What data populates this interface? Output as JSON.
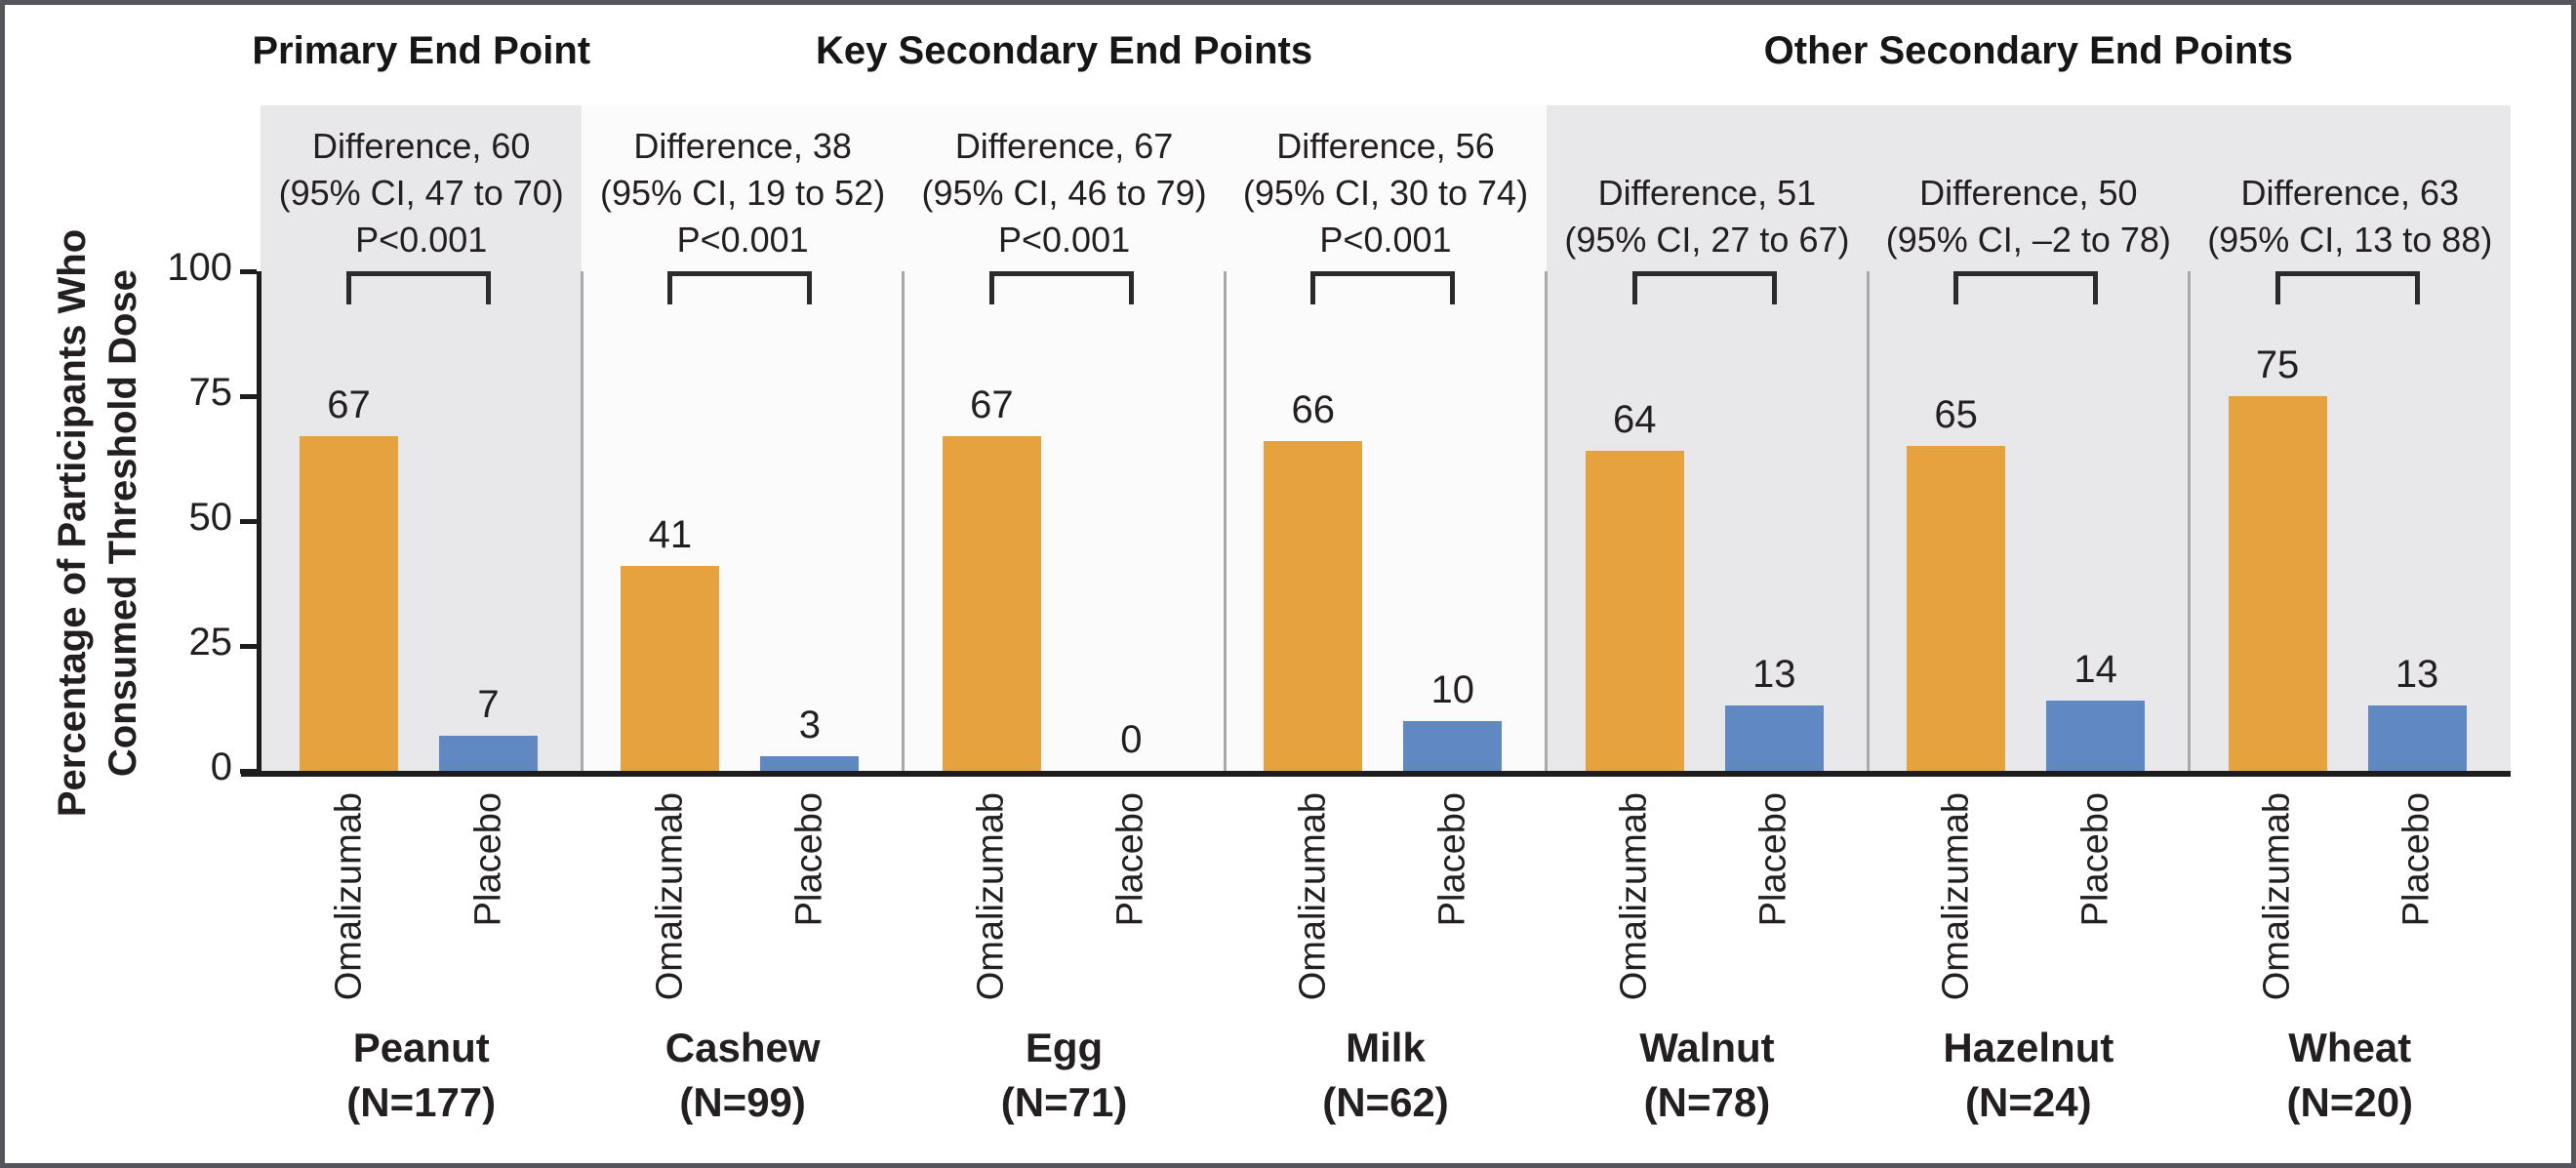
{
  "chart_data": {
    "type": "bar",
    "title": "",
    "ylabel": "Percentage of Participants Who Consumed Threshold Dose",
    "ylabel_lines": [
      "Percentage of Participants Who",
      "Consumed Threshold Dose"
    ],
    "ylim": [
      0,
      100
    ],
    "yticks": [
      100,
      75,
      50,
      25,
      0
    ],
    "grid": false,
    "legend_position": "labels-below-bars",
    "categories": [
      "Peanut",
      "Cashew",
      "Egg",
      "Milk",
      "Walnut",
      "Hazelnut",
      "Wheat"
    ],
    "series": [
      {
        "name": "Omalizumab",
        "color": "#E6A23E",
        "values": [
          67,
          41,
          67,
          66,
          64,
          65,
          75
        ]
      },
      {
        "name": "Placebo",
        "color": "#6089C4",
        "values": [
          7,
          3,
          0,
          10,
          13,
          14,
          13
        ]
      }
    ],
    "sections": [
      {
        "label": "Primary End Point",
        "panel_count": 1,
        "shaded": true
      },
      {
        "label": "Key Secondary End Points",
        "panel_count": 3,
        "shaded": false
      },
      {
        "label": "Other Secondary End Points",
        "panel_count": 3,
        "shaded": true
      }
    ],
    "panels": [
      {
        "food": "Peanut",
        "n_label": "(N=177)",
        "annotation_lines": [
          "Difference, 60",
          "(95% CI, 47 to 70)",
          "P<0.001"
        ]
      },
      {
        "food": "Cashew",
        "n_label": "(N=99)",
        "annotation_lines": [
          "Difference, 38",
          "(95% CI, 19 to 52)",
          "P<0.001"
        ]
      },
      {
        "food": "Egg",
        "n_label": "(N=71)",
        "annotation_lines": [
          "Difference, 67",
          "(95% CI, 46 to 79)",
          "P<0.001"
        ]
      },
      {
        "food": "Milk",
        "n_label": "(N=62)",
        "annotation_lines": [
          "Difference, 56",
          "(95% CI, 30 to 74)",
          "P<0.001"
        ]
      },
      {
        "food": "Walnut",
        "n_label": "(N=78)",
        "annotation_lines": [
          "Difference, 51",
          "(95% CI, 27 to 67)"
        ]
      },
      {
        "food": "Hazelnut",
        "n_label": "(N=24)",
        "annotation_lines": [
          "Difference, 50",
          "(95% CI, –2 to 78)"
        ]
      },
      {
        "food": "Wheat",
        "n_label": "(N=20)",
        "annotation_lines": [
          "Difference, 63",
          "(95% CI, 13 to 88)"
        ]
      }
    ],
    "colors": {
      "omalizumab_bar": "#E6A23E",
      "placebo_bar": "#6089C4",
      "shaded_panel_bg": "#E8E8EA",
      "light_panel_bg": "#FBFBFB",
      "axis": "#1D1D1D",
      "divider": "#A9A9AD",
      "border": "#55565B"
    }
  }
}
